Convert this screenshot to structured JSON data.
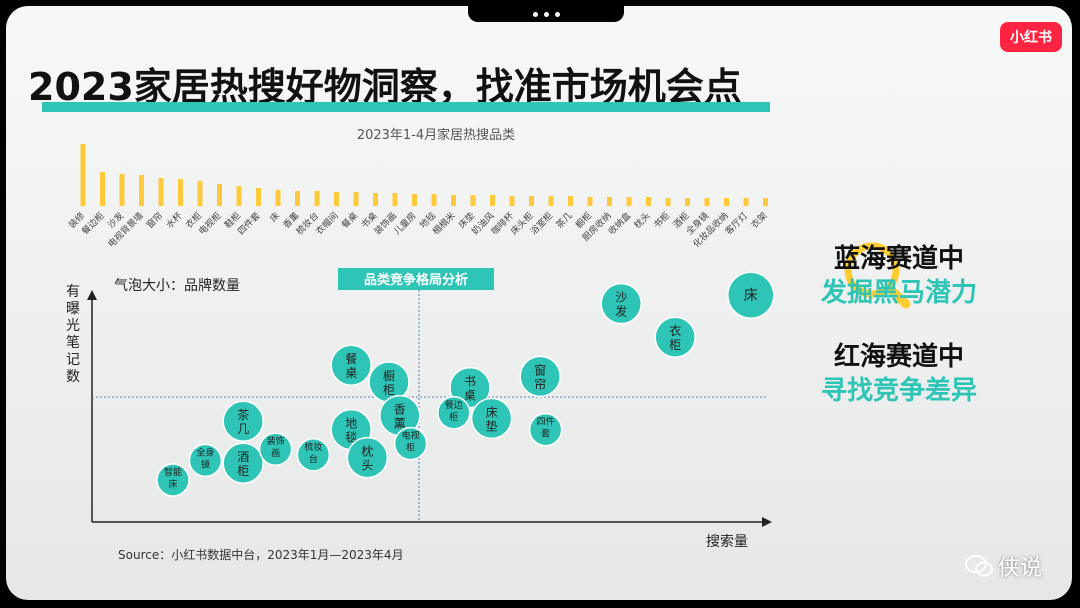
{
  "header": {
    "title": "2023家居热搜好物洞察，找准市场机会点",
    "logo": "小红书"
  },
  "chart_data": [
    {
      "type": "bar",
      "title": "2023年1-4月家居热搜品类",
      "categories": [
        "装修",
        "餐边柜",
        "沙发",
        "电视背景墙",
        "窗帘",
        "水杯",
        "衣柜",
        "电视柜",
        "鞋柜",
        "四件套",
        "床",
        "香薰",
        "梳妆台",
        "衣帽间",
        "餐桌",
        "书桌",
        "装饰画",
        "儿童房",
        "地毯",
        "榻榻米",
        "床垫",
        "奶油风",
        "咖啡杯",
        "床头柜",
        "浴室柜",
        "茶几",
        "橱柜",
        "厨房收纳",
        "收纳盒",
        "枕头",
        "书柜",
        "酒柜",
        "全身镜",
        "化妆品收纳",
        "客厅灯",
        "衣架"
      ],
      "values": [
        62,
        34,
        32,
        31,
        28,
        27,
        25,
        22,
        20,
        18,
        16,
        15,
        15,
        14,
        14,
        13,
        13,
        12,
        12,
        11,
        11,
        11,
        10,
        10,
        10,
        10,
        9,
        9,
        9,
        9,
        8,
        8,
        8,
        8,
        8,
        8
      ]
    },
    {
      "type": "scatter",
      "title": "品类竞争格局分析",
      "xlabel": "搜索量",
      "ylabel": "有曝光笔记数",
      "bubble_label": "气泡大小：品牌数量",
      "points": [
        {
          "label": "智能床",
          "x": 0.15,
          "y": 0.15
        },
        {
          "label": "全身镜",
          "x": 0.21,
          "y": 0.22
        },
        {
          "label": "茶几",
          "x": 0.28,
          "y": 0.36
        },
        {
          "label": "酒柜",
          "x": 0.28,
          "y": 0.21
        },
        {
          "label": "装饰画",
          "x": 0.34,
          "y": 0.26
        },
        {
          "label": "梳妆台",
          "x": 0.41,
          "y": 0.24
        },
        {
          "label": "餐桌",
          "x": 0.48,
          "y": 0.56
        },
        {
          "label": "橱柜",
          "x": 0.55,
          "y": 0.5
        },
        {
          "label": "地毯",
          "x": 0.48,
          "y": 0.33
        },
        {
          "label": "枕头",
          "x": 0.51,
          "y": 0.23
        },
        {
          "label": "香薰",
          "x": 0.57,
          "y": 0.38
        },
        {
          "label": "电视柜",
          "x": 0.59,
          "y": 0.28
        },
        {
          "label": "书桌",
          "x": 0.7,
          "y": 0.48
        },
        {
          "label": "餐边柜",
          "x": 0.67,
          "y": 0.39
        },
        {
          "label": "床垫",
          "x": 0.74,
          "y": 0.37
        },
        {
          "label": "窗帘",
          "x": 0.83,
          "y": 0.52
        },
        {
          "label": "四件套",
          "x": 0.84,
          "y": 0.33
        },
        {
          "label": "沙发",
          "x": 0.98,
          "y": 0.78
        },
        {
          "label": "衣柜",
          "x": 1.08,
          "y": 0.66
        },
        {
          "label": "床",
          "x": 1.22,
          "y": 0.81
        }
      ]
    }
  ],
  "right_panel": {
    "line1": "蓝海赛道中",
    "line2": "发掘黑马潜力",
    "line3": "红海赛道中",
    "line4": "寻找竞争差异"
  },
  "source": "Source：小红书数据中台，2023年1月—2023年4月",
  "watermark": "侠说",
  "colors": {
    "accent": "#2ec4b6",
    "bar": "#ffc93c",
    "brand": "#ff2442"
  }
}
